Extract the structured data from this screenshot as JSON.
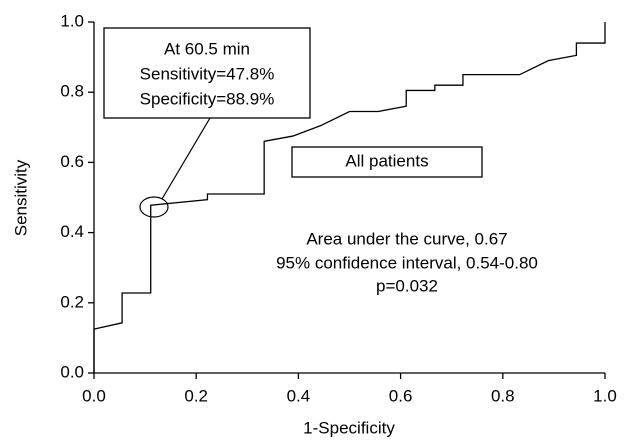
{
  "chart_data": {
    "type": "line",
    "x_label": "1-Specificity",
    "y_label": "Sensitivity",
    "x": [
      0,
      0,
      0.055,
      0.055,
      0.111,
      0.111,
      0.222,
      0.222,
      0.333,
      0.333,
      0.389,
      0.444,
      0.5,
      0.556,
      0.611,
      0.611,
      0.667,
      0.667,
      0.722,
      0.722,
      0.833,
      0.889,
      0.944,
      0.944,
      1.0,
      1.0
    ],
    "values": [
      0,
      0.125,
      0.143,
      0.228,
      0.228,
      0.478,
      0.494,
      0.51,
      0.51,
      0.66,
      0.675,
      0.705,
      0.745,
      0.745,
      0.76,
      0.805,
      0.805,
      0.82,
      0.82,
      0.85,
      0.85,
      0.89,
      0.905,
      0.94,
      0.94,
      1.0
    ],
    "color": "#000000",
    "xlim": [
      0,
      1
    ],
    "ylim": [
      0,
      1
    ],
    "xticks": [
      {
        "value": 0,
        "label": "0.0"
      },
      {
        "value": 0.2,
        "label": "0.2"
      },
      {
        "value": 0.4,
        "label": "0.4"
      },
      {
        "value": 0.6,
        "label": "0.6"
      },
      {
        "value": 0.8,
        "label": "0.8"
      },
      {
        "value": 1,
        "label": "1.0"
      }
    ],
    "yticks": [
      {
        "value": 0,
        "label": "0.0"
      },
      {
        "value": 0.2,
        "label": "0.2"
      },
      {
        "value": 0.4,
        "label": "0.4"
      },
      {
        "value": 0.6,
        "label": "0.6"
      },
      {
        "value": 0.8,
        "label": "0.8"
      },
      {
        "value": 1,
        "label": "1.0"
      }
    ],
    "cutoff_annotation": [
      "At 60.5 min",
      "Sensitivity=47.8%",
      "Specificity=88.9%"
    ],
    "group_label": "All patients",
    "stats": [
      "Area under the curve, 0.67",
      "95% confidence interval, 0.54-0.80",
      "p=0.032"
    ],
    "grid": false
  }
}
